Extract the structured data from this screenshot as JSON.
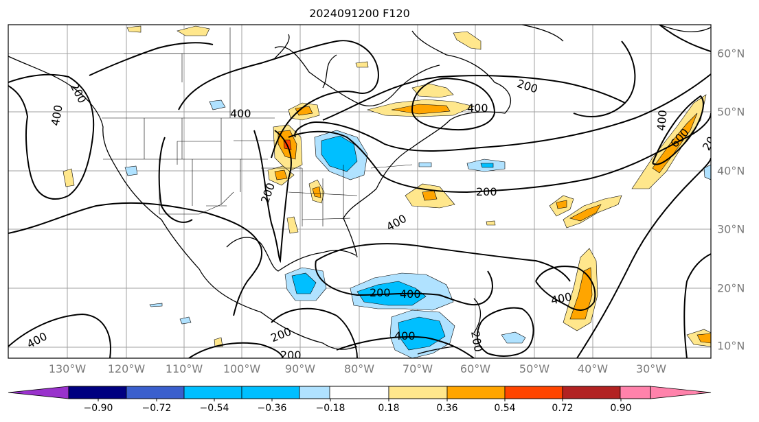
{
  "title": "2024091200 F120",
  "lon_labels": [
    "130°W",
    "120°W",
    "110°W",
    "100°W",
    "90°W",
    "80°W",
    "70°W",
    "60°W",
    "50°W",
    "40°W",
    "30°W"
  ],
  "lat_labels": [
    "60°N",
    "50°N",
    "40°N",
    "30°N",
    "20°N",
    "10°N"
  ],
  "contour_labels": [
    {
      "id": "c1",
      "text": "200"
    },
    {
      "id": "c2",
      "text": "400"
    },
    {
      "id": "c3",
      "text": "400"
    },
    {
      "id": "c4",
      "text": "200"
    },
    {
      "id": "c5",
      "text": "400"
    },
    {
      "id": "c6",
      "text": "200"
    },
    {
      "id": "c7",
      "text": "400"
    },
    {
      "id": "c8",
      "text": "200"
    },
    {
      "id": "c9",
      "text": "400"
    },
    {
      "id": "c10",
      "text": "600"
    },
    {
      "id": "c11",
      "text": "20"
    },
    {
      "id": "c12",
      "text": "400"
    },
    {
      "id": "c13",
      "text": "400"
    },
    {
      "id": "c14",
      "text": "200"
    },
    {
      "id": "c15",
      "text": "200"
    },
    {
      "id": "c16",
      "text": "400"
    },
    {
      "id": "c17",
      "text": "200"
    },
    {
      "id": "c18",
      "text": "200"
    },
    {
      "id": "c19",
      "text": "400"
    }
  ],
  "colorbar": {
    "labels": [
      "−0.90",
      "−0.72",
      "−0.54",
      "−0.36",
      "−0.18",
      "0.18",
      "0.36",
      "0.54",
      "0.72",
      "0.90"
    ],
    "colors": [
      "#9932cc",
      "#000080",
      "#3a5fcd",
      "#00bfff",
      "#b0e2ff",
      "#ffffff",
      "#ffe78c",
      "#ffa500",
      "#ff4500",
      "#b22222",
      "#ff82ab"
    ]
  }
}
